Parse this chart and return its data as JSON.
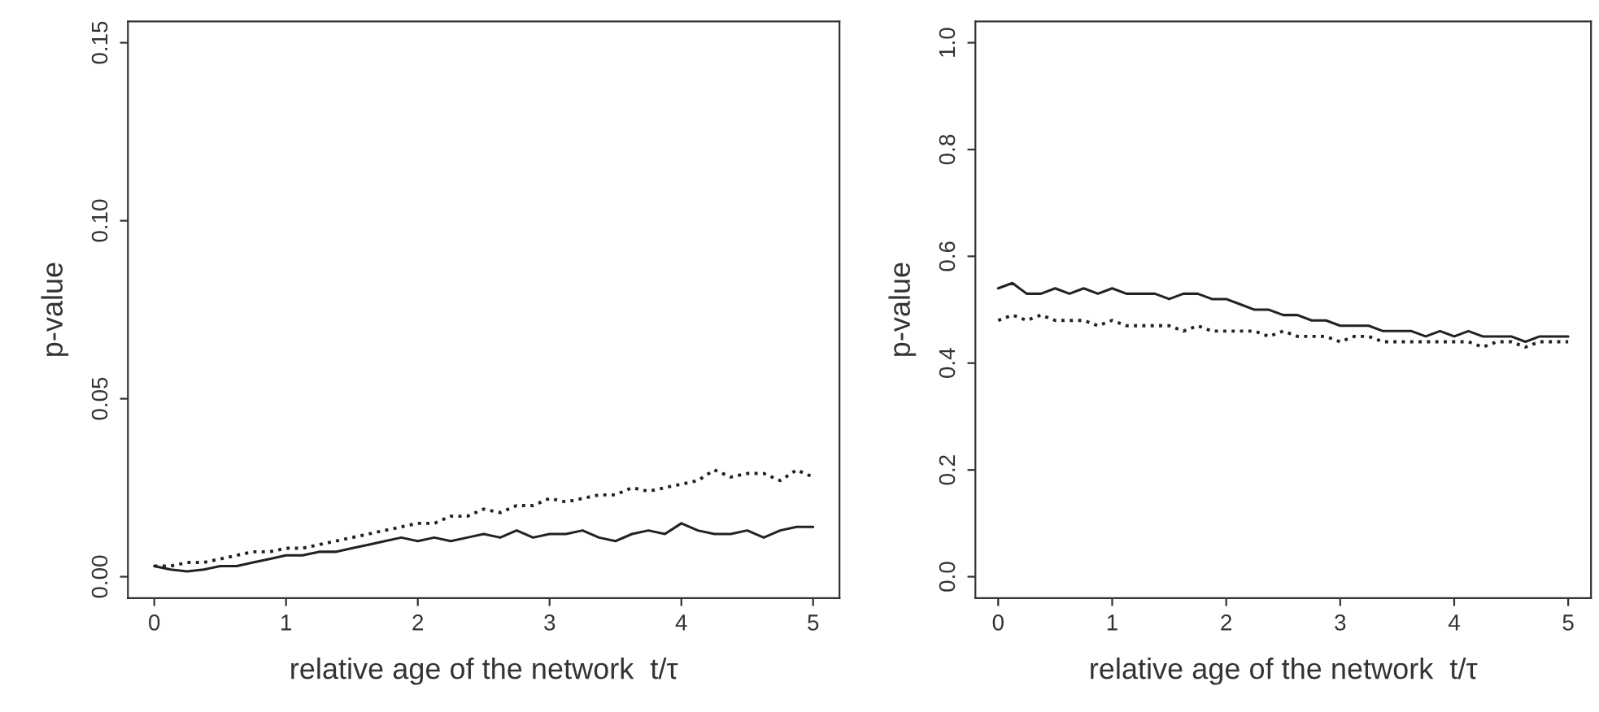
{
  "chart_data": [
    {
      "type": "line",
      "xlabel": "relative age of the network  t/τ",
      "ylabel": "p-value",
      "xlim": [
        -0.2,
        5.2
      ],
      "ylim": [
        -0.006,
        0.156
      ],
      "xticks": [
        0,
        1,
        2,
        3,
        4,
        5
      ],
      "yticks": [
        {
          "value": 0,
          "label": "0.00"
        },
        0.05,
        {
          "value": 0.1,
          "label": "0.10"
        },
        0.15
      ],
      "grid": false,
      "legend": false,
      "marker": "none",
      "x": [
        0,
        0.125,
        0.25,
        0.375,
        0.5,
        0.625,
        0.75,
        0.875,
        1,
        1.125,
        1.25,
        1.375,
        1.5,
        1.625,
        1.75,
        1.875,
        2,
        2.125,
        2.25,
        2.375,
        2.5,
        2.625,
        2.75,
        2.875,
        3,
        3.125,
        3.25,
        3.375,
        3.5,
        3.625,
        3.75,
        3.875,
        4,
        4.125,
        4.25,
        4.375,
        4.5,
        4.625,
        4.75,
        4.875,
        5
      ],
      "series": [
        {
          "color": "#222222",
          "line_style": "solid",
          "values": [
            0.003,
            0.002,
            0.0015,
            0.002,
            0.003,
            0.003,
            0.004,
            0.005,
            0.006,
            0.006,
            0.007,
            0.007,
            0.008,
            0.009,
            0.01,
            0.011,
            0.01,
            0.011,
            0.01,
            0.011,
            0.012,
            0.011,
            0.013,
            0.011,
            0.012,
            0.012,
            0.013,
            0.011,
            0.01,
            0.012,
            0.013,
            0.012,
            0.015,
            0.013,
            0.012,
            0.012,
            0.013,
            0.011,
            0.013,
            0.014,
            0.014
          ]
        },
        {
          "color": "#222222",
          "line_style": "dotted",
          "values": [
            0.003,
            0.003,
            0.004,
            0.004,
            0.005,
            0.006,
            0.007,
            0.007,
            0.008,
            0.008,
            0.009,
            0.01,
            0.011,
            0.012,
            0.013,
            0.014,
            0.015,
            0.015,
            0.017,
            0.017,
            0.019,
            0.018,
            0.02,
            0.02,
            0.022,
            0.021,
            0.022,
            0.023,
            0.023,
            0.025,
            0.024,
            0.025,
            0.026,
            0.027,
            0.03,
            0.028,
            0.029,
            0.029,
            0.027,
            0.03,
            0.028
          ]
        }
      ]
    },
    {
      "type": "line",
      "xlabel": "relative age of the network  t/τ",
      "ylabel": "p-value",
      "xlim": [
        -0.2,
        5.2
      ],
      "ylim": [
        -0.04,
        1.04
      ],
      "xticks": [
        0,
        1,
        2,
        3,
        4,
        5
      ],
      "yticks": [
        {
          "value": 0,
          "label": "0.0"
        },
        0.2,
        0.4,
        0.6,
        0.8,
        {
          "value": 1,
          "label": "1.0"
        }
      ],
      "grid": false,
      "legend": false,
      "marker": "none",
      "x": [
        0,
        0.125,
        0.25,
        0.375,
        0.5,
        0.625,
        0.75,
        0.875,
        1,
        1.125,
        1.25,
        1.375,
        1.5,
        1.625,
        1.75,
        1.875,
        2,
        2.125,
        2.25,
        2.375,
        2.5,
        2.625,
        2.75,
        2.875,
        3,
        3.125,
        3.25,
        3.375,
        3.5,
        3.625,
        3.75,
        3.875,
        4,
        4.125,
        4.25,
        4.375,
        4.5,
        4.625,
        4.75,
        4.875,
        5
      ],
      "series": [
        {
          "color": "#222222",
          "line_style": "solid",
          "values": [
            0.54,
            0.55,
            0.53,
            0.53,
            0.54,
            0.53,
            0.54,
            0.53,
            0.54,
            0.53,
            0.53,
            0.53,
            0.52,
            0.53,
            0.53,
            0.52,
            0.52,
            0.51,
            0.5,
            0.5,
            0.49,
            0.49,
            0.48,
            0.48,
            0.47,
            0.47,
            0.47,
            0.46,
            0.46,
            0.46,
            0.45,
            0.46,
            0.45,
            0.46,
            0.45,
            0.45,
            0.45,
            0.44,
            0.45,
            0.45,
            0.45
          ]
        },
        {
          "color": "#222222",
          "line_style": "dotted",
          "values": [
            0.48,
            0.49,
            0.48,
            0.49,
            0.48,
            0.48,
            0.48,
            0.47,
            0.48,
            0.47,
            0.47,
            0.47,
            0.47,
            0.46,
            0.47,
            0.46,
            0.46,
            0.46,
            0.46,
            0.45,
            0.46,
            0.45,
            0.45,
            0.45,
            0.44,
            0.45,
            0.45,
            0.44,
            0.44,
            0.44,
            0.44,
            0.44,
            0.44,
            0.44,
            0.43,
            0.44,
            0.44,
            0.43,
            0.44,
            0.44,
            0.44
          ]
        }
      ]
    }
  ]
}
